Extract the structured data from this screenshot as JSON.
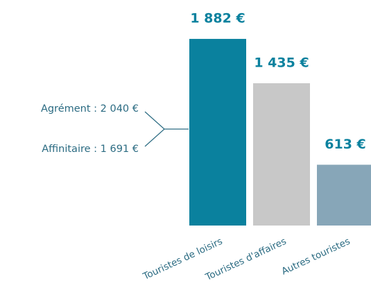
{
  "chart_data": {
    "type": "bar",
    "categories": [
      "Touristes de loisirs",
      "Touristes d'affaires",
      "Autres touristes"
    ],
    "values": [
      1882,
      1435,
      613
    ],
    "value_labels": [
      "1 882 €",
      "1 435 €",
      "613 €"
    ],
    "colors": [
      "#0a819e",
      "#c8c8c8",
      "#87a6b8"
    ],
    "annotations": [
      "Agrément : 2 040 €",
      "Affinitaire : 1 691 €"
    ]
  }
}
